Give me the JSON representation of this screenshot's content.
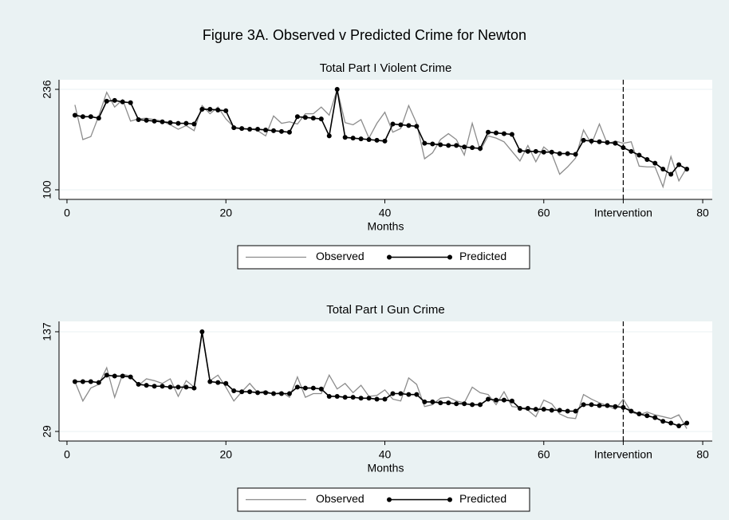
{
  "title": "Figure 3A. Observed v Predicted Crime for Newton",
  "chart_data": [
    {
      "type": "line",
      "title": "Total Part I Violent Crime",
      "xlabel": "Months",
      "x": [
        1,
        2,
        3,
        4,
        5,
        6,
        7,
        8,
        9,
        10,
        11,
        12,
        13,
        14,
        15,
        16,
        17,
        18,
        19,
        20,
        21,
        22,
        23,
        24,
        25,
        26,
        27,
        28,
        29,
        30,
        31,
        32,
        33,
        34,
        35,
        36,
        37,
        38,
        39,
        40,
        41,
        42,
        43,
        44,
        45,
        46,
        47,
        48,
        49,
        50,
        51,
        52,
        53,
        54,
        55,
        56,
        57,
        58,
        59,
        60,
        61,
        62,
        63,
        64,
        65,
        66,
        67,
        68,
        69,
        70,
        71,
        72,
        73,
        74,
        75,
        76,
        77,
        78
      ],
      "series": [
        {
          "name": "Observed",
          "color": "#8c8c8c",
          "markers": false,
          "values": [
            215,
            168,
            172,
            200,
            232,
            212,
            222,
            193,
            196,
            197,
            195,
            193,
            188,
            182,
            187,
            180,
            214,
            203,
            212,
            196,
            185,
            182,
            183,
            180,
            173,
            200,
            190,
            192,
            189,
            203,
            203,
            212,
            201,
            236,
            191,
            188,
            195,
            170,
            190,
            205,
            178,
            183,
            214,
            190,
            142,
            150,
            168,
            176,
            168,
            147,
            190,
            153,
            173,
            170,
            165,
            152,
            139,
            160,
            138,
            158,
            149,
            121,
            131,
            143,
            181,
            162,
            189,
            162,
            166,
            163,
            165,
            132,
            131,
            131,
            104,
            145,
            112,
            130
          ]
        },
        {
          "name": "Predicted",
          "color": "#000000",
          "markers": true,
          "values": [
            201,
            199,
            199,
            197,
            220,
            221,
            219,
            218,
            195,
            194,
            193,
            192,
            191,
            190,
            190,
            189,
            209,
            209,
            208,
            207,
            184,
            183,
            182,
            182,
            181,
            180,
            179,
            178,
            199,
            198,
            197,
            196,
            173,
            236,
            171,
            170,
            169,
            168,
            167,
            166,
            189,
            188,
            187,
            186,
            163,
            162,
            161,
            160,
            160,
            158,
            157,
            156,
            178,
            177,
            176,
            175,
            153,
            152,
            152,
            151,
            151,
            149,
            149,
            148,
            167,
            166,
            165,
            164,
            163,
            157,
            152,
            147,
            141,
            136,
            128,
            121,
            134,
            128
          ]
        }
      ],
      "xlim": [
        -1,
        81.2
      ],
      "ylim": [
        87,
        249
      ],
      "xticks": [
        0,
        20,
        40,
        60,
        {
          "value": 70,
          "label": "Intervention"
        },
        80
      ],
      "yticks": [
        100,
        236
      ],
      "grid": true,
      "reference_line": 70,
      "legend": "bottom"
    },
    {
      "type": "line",
      "title": "Total Part I Gun Crime",
      "xlabel": "Months",
      "x": [
        1,
        2,
        3,
        4,
        5,
        6,
        7,
        8,
        9,
        10,
        11,
        12,
        13,
        14,
        15,
        16,
        17,
        18,
        19,
        20,
        21,
        22,
        23,
        24,
        25,
        26,
        27,
        28,
        29,
        30,
        31,
        32,
        33,
        34,
        35,
        36,
        37,
        38,
        39,
        40,
        41,
        42,
        43,
        44,
        45,
        46,
        47,
        48,
        49,
        50,
        51,
        52,
        53,
        54,
        55,
        56,
        57,
        58,
        59,
        60,
        61,
        62,
        63,
        64,
        65,
        66,
        67,
        68,
        69,
        70,
        71,
        72,
        73,
        74,
        75,
        76,
        77,
        78
      ],
      "series": [
        {
          "name": "Observed",
          "color": "#8c8c8c",
          "markers": false,
          "values": [
            83,
            62,
            76,
            80,
            98,
            66,
            91,
            89,
            79,
            86,
            84,
            81,
            86,
            67,
            84,
            77,
            135,
            84,
            90,
            77,
            62,
            72,
            81,
            71,
            73,
            69,
            72,
            66,
            88,
            66,
            70,
            70,
            90,
            75,
            81,
            71,
            79,
            67,
            68,
            74,
            64,
            62,
            87,
            80,
            56,
            58,
            65,
            66,
            62,
            60,
            77,
            71,
            69,
            58,
            72,
            56,
            55,
            52,
            45,
            63,
            59,
            48,
            44,
            43,
            69,
            64,
            60,
            57,
            53,
            64,
            50,
            47,
            50,
            47,
            45,
            43,
            47,
            32
          ]
        },
        {
          "name": "Predicted",
          "color": "#000000",
          "markers": true,
          "values": [
            83,
            83,
            83,
            82,
            90,
            89,
            89,
            88,
            80,
            79,
            78,
            78,
            77,
            77,
            77,
            76,
            137,
            83,
            82,
            81,
            73,
            72,
            72,
            71,
            71,
            70,
            70,
            70,
            77,
            76,
            76,
            75,
            67,
            67,
            66,
            66,
            65,
            65,
            64,
            64,
            70,
            70,
            69,
            69,
            61,
            61,
            60,
            60,
            59,
            59,
            58,
            58,
            64,
            63,
            63,
            62,
            54,
            54,
            53,
            53,
            52,
            52,
            51,
            51,
            58,
            58,
            57,
            57,
            56,
            55,
            51,
            48,
            46,
            44,
            40,
            38,
            35,
            38
          ]
        }
      ],
      "xlim": [
        -1,
        81.2
      ],
      "ylim": [
        18.6,
        148.2
      ],
      "xticks": [
        0,
        20,
        40,
        60,
        {
          "value": 70,
          "label": "Intervention"
        },
        80
      ],
      "yticks": [
        29,
        137
      ],
      "grid": true,
      "reference_line": 70,
      "legend": "bottom"
    }
  ]
}
